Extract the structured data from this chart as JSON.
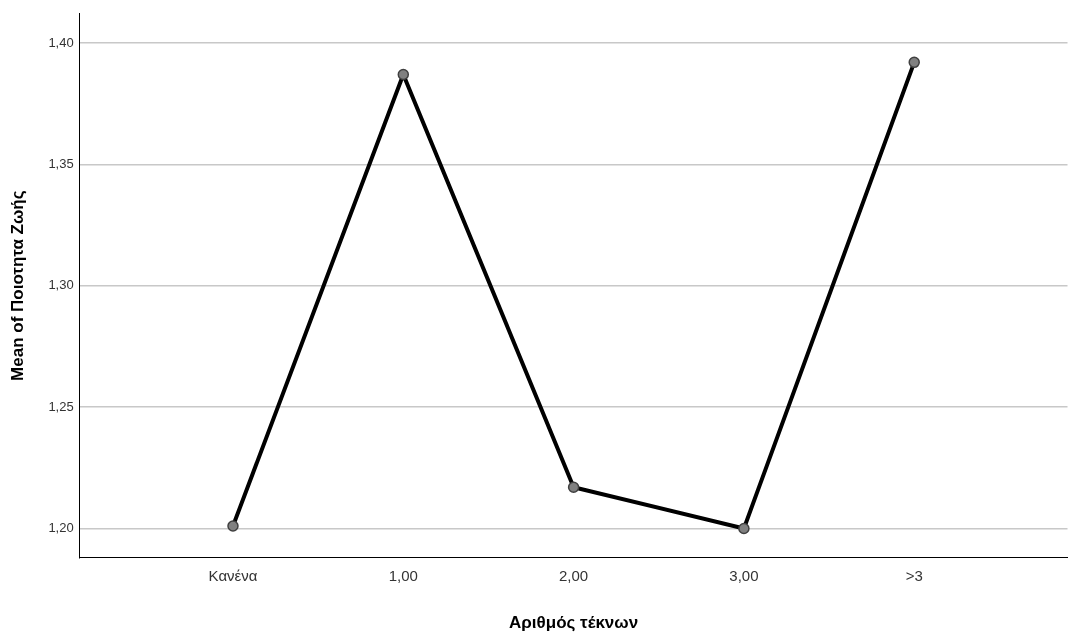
{
  "chart_data": {
    "type": "line",
    "xlabel": "Αριθμός τέκνων",
    "ylabel": "Mean of Ποιοτητα Ζωής",
    "categories": [
      "Κανένα",
      "1,00",
      "2,00",
      "3,00",
      ">3"
    ],
    "series": [
      {
        "color": "#000000",
        "values": [
          1.201,
          1.387,
          1.217,
          1.2,
          1.392
        ]
      }
    ],
    "ylim": [
      1.188,
      1.412
    ],
    "yticks": [
      {
        "value": 1.2,
        "label": "1,20"
      },
      {
        "value": 1.25,
        "label": "1,25"
      },
      {
        "value": 1.3,
        "label": "1,30"
      },
      {
        "value": 1.35,
        "label": "1,35"
      },
      {
        "value": 1.4,
        "label": "1,40"
      }
    ],
    "grid": "y",
    "legend": false,
    "marker": "circle",
    "line_style": "solid"
  }
}
